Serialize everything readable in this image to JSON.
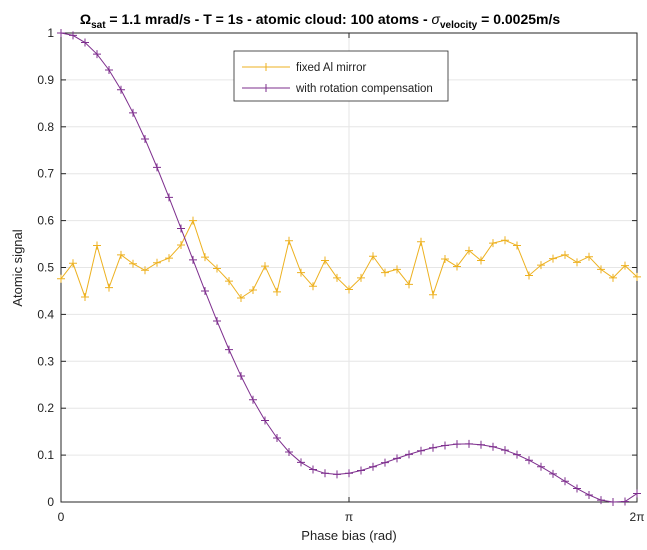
{
  "chart_data": {
    "type": "line",
    "title": {
      "omega": "Ω",
      "omega_sub": "sat",
      "part1": " = 1.1 mrad/s - T = 1s - atomic cloud: 100 atoms -  ",
      "sigma": "σ",
      "sigma_sub": "velocity",
      "part2": " = 0.0025m/s"
    },
    "xlabel": "Phase bias (rad)",
    "ylabel": "Atomic signal",
    "xlim": [
      0,
      6.283185307
    ],
    "ylim": [
      0,
      1
    ],
    "xticks": [
      {
        "value": 0,
        "label": "0"
      },
      {
        "value": 3.141592654,
        "label": "π"
      },
      {
        "value": 6.283185307,
        "label": "2π"
      }
    ],
    "yticks": [
      {
        "value": 0,
        "label": "0"
      },
      {
        "value": 0.1,
        "label": "0.1"
      },
      {
        "value": 0.2,
        "label": "0.2"
      },
      {
        "value": 0.3,
        "label": "0.3"
      },
      {
        "value": 0.4,
        "label": "0.4"
      },
      {
        "value": 0.5,
        "label": "0.5"
      },
      {
        "value": 0.6,
        "label": "0.6"
      },
      {
        "value": 0.7,
        "label": "0.7"
      },
      {
        "value": 0.8,
        "label": "0.8"
      },
      {
        "value": 0.9,
        "label": "0.9"
      },
      {
        "value": 1,
        "label": "1"
      }
    ],
    "grid": true,
    "legend_position": "top-center",
    "series": [
      {
        "name": "fixed Al mirror",
        "color": "#EDB120",
        "marker": "+",
        "y": [
          0.476,
          0.509,
          0.437,
          0.547,
          0.457,
          0.527,
          0.508,
          0.494,
          0.51,
          0.52,
          0.548,
          0.6,
          0.522,
          0.498,
          0.471,
          0.435,
          0.452,
          0.503,
          0.448,
          0.557,
          0.489,
          0.46,
          0.515,
          0.478,
          0.453,
          0.478,
          0.524,
          0.489,
          0.496,
          0.464,
          0.555,
          0.442,
          0.518,
          0.502,
          0.536,
          0.515,
          0.552,
          0.558,
          0.547,
          0.483,
          0.505,
          0.519,
          0.527,
          0.511,
          0.523,
          0.496,
          0.478,
          0.504,
          0.48
        ]
      },
      {
        "name": "with rotation compensation",
        "color": "#7E2F8E",
        "marker": "+",
        "y": [
          1.0,
          0.9949,
          0.9797,
          0.9549,
          0.9211,
          0.879,
          0.8296,
          0.774,
          0.7135,
          0.6494,
          0.5832,
          0.5163,
          0.45,
          0.3858,
          0.3249,
          0.2686,
          0.2179,
          0.1737,
          0.1365,
          0.1067,
          0.0844,
          0.0694,
          0.0612,
          0.0589,
          0.0613,
          0.0672,
          0.0752,
          0.084,
          0.093,
          0.1016,
          0.1093,
          0.1157,
          0.1205,
          0.1234,
          0.124,
          0.1221,
          0.1177,
          0.1106,
          0.101,
          0.0891,
          0.0752,
          0.06,
          0.0442,
          0.0287,
          0.015,
          0.004,
          0.0,
          0.001,
          0.018
        ]
      }
    ]
  }
}
